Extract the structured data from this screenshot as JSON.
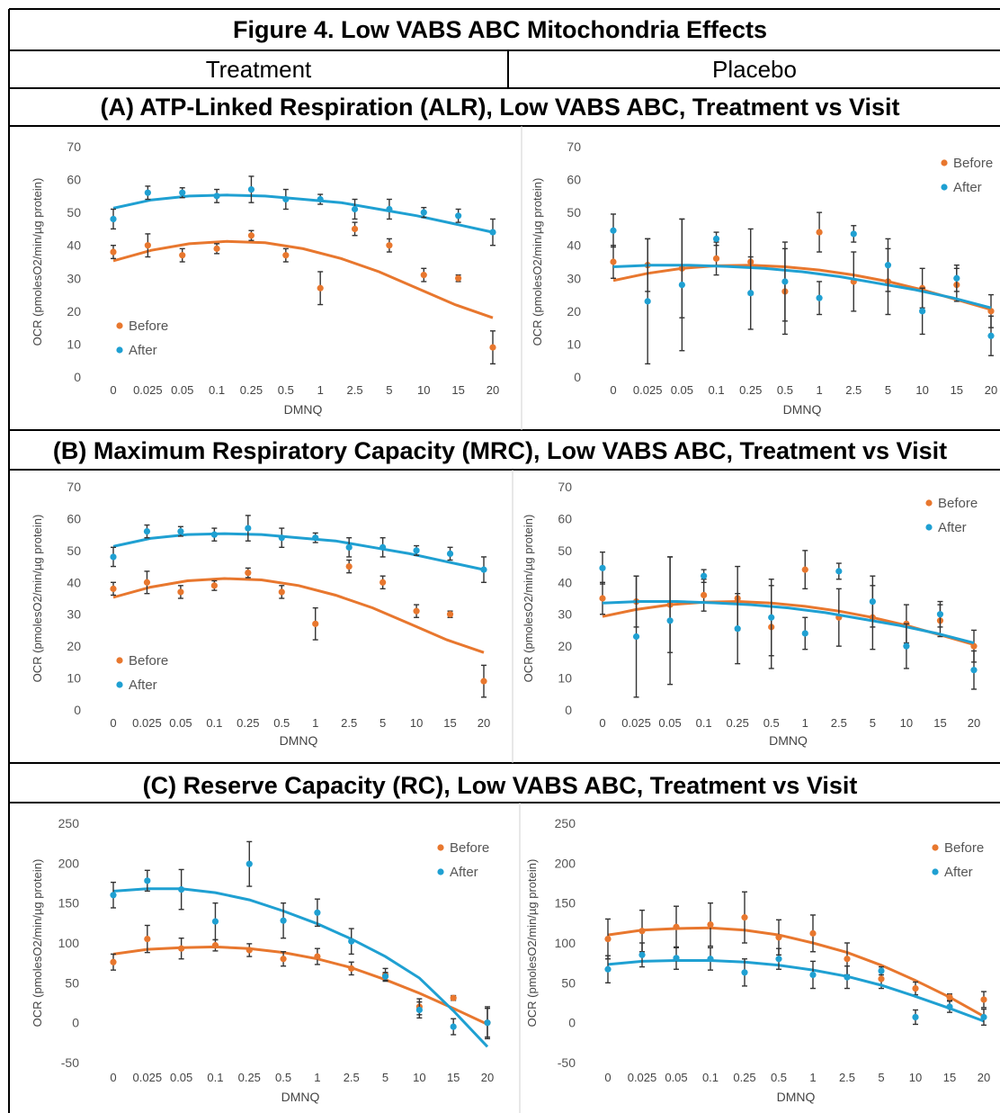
{
  "figure_title": "Figure 4. Low VABS ABC Mitochondria Effects",
  "headers": {
    "left": "Treatment",
    "right": "Placebo"
  },
  "sections": [
    {
      "title": "(A) ATP-Linked Respiration (ALR), Low VABS ABC, Treatment vs Visit"
    },
    {
      "title": "(B) Maximum Respiratory Capacity (MRC), Low VABS ABC, Treatment vs Visit"
    },
    {
      "title": "(C) Reserve Capacity (RC), Low VABS ABC, Treatment vs Visit"
    }
  ],
  "colors": {
    "before": "#E8772E",
    "after": "#1FA0D2",
    "error": "#333333"
  },
  "chart_data": [
    {
      "type": "scatter",
      "panel": "A-treatment",
      "xlabel": "DMNQ",
      "ylabel": "OCR (pmolesO2/min/µg protein)",
      "categories": [
        "0",
        "0.025",
        "0.05",
        "0.1",
        "0.25",
        "0.5",
        "1",
        "2.5",
        "5",
        "10",
        "15",
        "20"
      ],
      "ylim": [
        0,
        70
      ],
      "yticks": [
        0,
        10,
        20,
        30,
        40,
        50,
        60,
        70
      ],
      "legend_position": "bottom-left",
      "series": [
        {
          "name": "Before",
          "values": [
            38,
            40,
            37,
            39,
            43,
            37,
            27,
            45,
            40,
            31,
            30,
            9
          ],
          "errors": [
            2,
            3.5,
            2,
            1.5,
            1.5,
            2,
            5,
            2,
            2,
            2,
            1,
            5
          ],
          "trend": [
            35.3,
            38.5,
            40.5,
            41.2,
            40.8,
            39,
            36,
            32,
            27,
            22,
            18
          ]
        },
        {
          "name": "After",
          "values": [
            48,
            56,
            56,
            55,
            57,
            54,
            54,
            51,
            51,
            50,
            49,
            44
          ],
          "errors": [
            3,
            2,
            1.5,
            2,
            4,
            3,
            1.5,
            3,
            3,
            1.5,
            2,
            4
          ],
          "trend": [
            51.3,
            53.8,
            55,
            55.3,
            55,
            54,
            53,
            51,
            49,
            46.5,
            44
          ]
        }
      ]
    },
    {
      "type": "scatter",
      "panel": "A-placebo",
      "xlabel": "DMNQ",
      "ylabel": "OCR (pmolesO2/min/µg protein)",
      "categories": [
        "0",
        "0.025",
        "0.05",
        "0.1",
        "0.25",
        "0.5",
        "1",
        "2.5",
        "5",
        "10",
        "15",
        "20"
      ],
      "ylim": [
        0,
        70
      ],
      "yticks": [
        0,
        10,
        20,
        30,
        40,
        50,
        60,
        70
      ],
      "legend_position": "top-right",
      "series": [
        {
          "name": "Before",
          "values": [
            35,
            34,
            33,
            36,
            35,
            26,
            44,
            29,
            29,
            27,
            28,
            20
          ],
          "errors": [
            5,
            8,
            15,
            5,
            10,
            13,
            6,
            9,
            10,
            6,
            5,
            5
          ],
          "trend": [
            29.3,
            31.5,
            33,
            33.8,
            34,
            33.5,
            32.5,
            31,
            29,
            26.5,
            23.5,
            20.5
          ]
        },
        {
          "name": "After",
          "values": [
            44.5,
            23,
            28,
            42,
            25.5,
            29,
            24,
            43.5,
            34,
            20,
            30,
            12.5
          ],
          "errors": [
            5,
            19,
            20,
            2,
            11,
            12,
            5,
            2.5,
            8,
            7,
            4,
            6
          ],
          "trend": [
            33.5,
            34,
            34,
            33.6,
            33,
            32,
            30.5,
            28.5,
            26.5,
            24,
            21
          ]
        }
      ]
    },
    {
      "type": "scatter",
      "panel": "B-treatment",
      "xlabel": "DMNQ",
      "ylabel": "OCR (pmolesO2/min/µg protein)",
      "categories": [
        "0",
        "0.025",
        "0.05",
        "0.1",
        "0.25",
        "0.5",
        "1",
        "2.5",
        "5",
        "10",
        "15",
        "20"
      ],
      "ylim": [
        0,
        70
      ],
      "yticks": [
        0,
        10,
        20,
        30,
        40,
        50,
        60,
        70
      ],
      "legend_position": "bottom-left",
      "series": [
        {
          "name": "Before",
          "values": [
            38,
            40,
            37,
            39,
            43,
            37,
            27,
            45,
            40,
            31,
            30,
            9
          ],
          "errors": [
            2,
            3.5,
            2,
            1.5,
            1.5,
            2,
            5,
            2,
            2,
            2,
            1,
            5
          ],
          "trend": [
            35.3,
            38.5,
            40.5,
            41.2,
            40.8,
            39,
            36,
            32,
            27,
            22,
            18
          ]
        },
        {
          "name": "After",
          "values": [
            48,
            56,
            56,
            55,
            57,
            54,
            54,
            51,
            51,
            50,
            49,
            44
          ],
          "errors": [
            3,
            2,
            1.5,
            2,
            4,
            3,
            1.5,
            3,
            3,
            1.5,
            2,
            4
          ],
          "trend": [
            51.3,
            53.8,
            55,
            55.3,
            55,
            54,
            53,
            51,
            49,
            46.5,
            44
          ]
        }
      ]
    },
    {
      "type": "scatter",
      "panel": "B-placebo",
      "xlabel": "DMNQ",
      "ylabel": "OCR (pmolesO2/min/µg protein)",
      "categories": [
        "0",
        "0.025",
        "0.05",
        "0.1",
        "0.25",
        "0.5",
        "1",
        "2.5",
        "5",
        "10",
        "15",
        "20"
      ],
      "ylim": [
        0,
        70
      ],
      "yticks": [
        0,
        10,
        20,
        30,
        40,
        50,
        60,
        70
      ],
      "legend_position": "top-right",
      "series": [
        {
          "name": "Before",
          "values": [
            35,
            34,
            33,
            36,
            35,
            26,
            44,
            29,
            29,
            27,
            28,
            20
          ],
          "errors": [
            5,
            8,
            15,
            5,
            10,
            13,
            6,
            9,
            10,
            6,
            5,
            5
          ],
          "trend": [
            29.3,
            31.5,
            33,
            33.8,
            34,
            33.5,
            32.5,
            31,
            29,
            26.5,
            23.5,
            20.5
          ]
        },
        {
          "name": "After",
          "values": [
            44.5,
            23,
            28,
            42,
            25.5,
            29,
            24,
            43.5,
            34,
            20,
            30,
            12.5
          ],
          "errors": [
            5,
            19,
            20,
            2,
            11,
            12,
            5,
            2.5,
            8,
            7,
            4,
            6
          ],
          "trend": [
            33.5,
            34,
            34,
            33.6,
            33,
            32,
            30.5,
            28.5,
            26.5,
            24,
            21
          ]
        }
      ]
    },
    {
      "type": "scatter",
      "panel": "C-treatment",
      "xlabel": "DMNQ",
      "ylabel": "OCR (pmolesO2/min/µg protein)",
      "categories": [
        "0",
        "0.025",
        "0.05",
        "0.1",
        "0.25",
        "0.5",
        "1",
        "2.5",
        "5",
        "10",
        "15",
        "20"
      ],
      "ylim": [
        -50,
        250
      ],
      "yticks": [
        -50,
        0,
        50,
        100,
        150,
        200,
        250
      ],
      "legend_position": "top-right",
      "series": [
        {
          "name": "Before",
          "values": [
            76,
            105,
            93,
            97,
            91,
            80,
            83,
            68,
            60,
            20,
            31,
            0
          ],
          "errors": [
            10,
            17,
            13,
            7,
            8,
            9,
            10,
            8,
            8,
            10,
            3,
            18
          ],
          "trend": [
            86,
            92,
            94,
            95,
            93,
            88,
            80,
            69,
            54,
            37,
            18,
            -2
          ]
        },
        {
          "name": "After",
          "values": [
            160,
            178,
            167,
            127,
            199,
            128,
            138,
            102,
            58,
            16,
            -5,
            0
          ],
          "errors": [
            16,
            13,
            25,
            23,
            28,
            22,
            17,
            16,
            5,
            10,
            10,
            20
          ],
          "trend": [
            165,
            168,
            168,
            163,
            154,
            140,
            124,
            105,
            83,
            56,
            15,
            -30
          ]
        }
      ]
    },
    {
      "type": "scatter",
      "panel": "C-placebo",
      "xlabel": "DMNQ",
      "ylabel": "OCR (pmolesO2/min/µg protein)",
      "categories": [
        "0",
        "0.025",
        "0.05",
        "0.1",
        "0.25",
        "0.5",
        "1",
        "2.5",
        "5",
        "10",
        "15",
        "20"
      ],
      "ylim": [
        -50,
        250
      ],
      "yticks": [
        -50,
        0,
        50,
        100,
        150,
        200,
        250
      ],
      "legend_position": "top-right",
      "series": [
        {
          "name": "Before",
          "values": [
            105,
            115,
            120,
            123,
            132,
            107,
            112,
            80,
            55,
            43,
            32,
            29
          ],
          "errors": [
            25,
            26,
            26,
            27,
            32,
            22,
            23,
            20,
            12,
            8,
            4,
            10
          ],
          "trend": [
            110,
            116,
            118,
            119,
            116,
            110,
            100,
            88,
            72,
            53,
            32,
            8
          ]
        },
        {
          "name": "After",
          "values": [
            67,
            85,
            81,
            80,
            63,
            80,
            60,
            57,
            65,
            7,
            20,
            7
          ],
          "errors": [
            17,
            15,
            14,
            14,
            17,
            13,
            17,
            14,
            5,
            9,
            7,
            10
          ],
          "trend": [
            73,
            77,
            78,
            78,
            76,
            72,
            66,
            58,
            47,
            33,
            18,
            2
          ]
        }
      ]
    }
  ]
}
